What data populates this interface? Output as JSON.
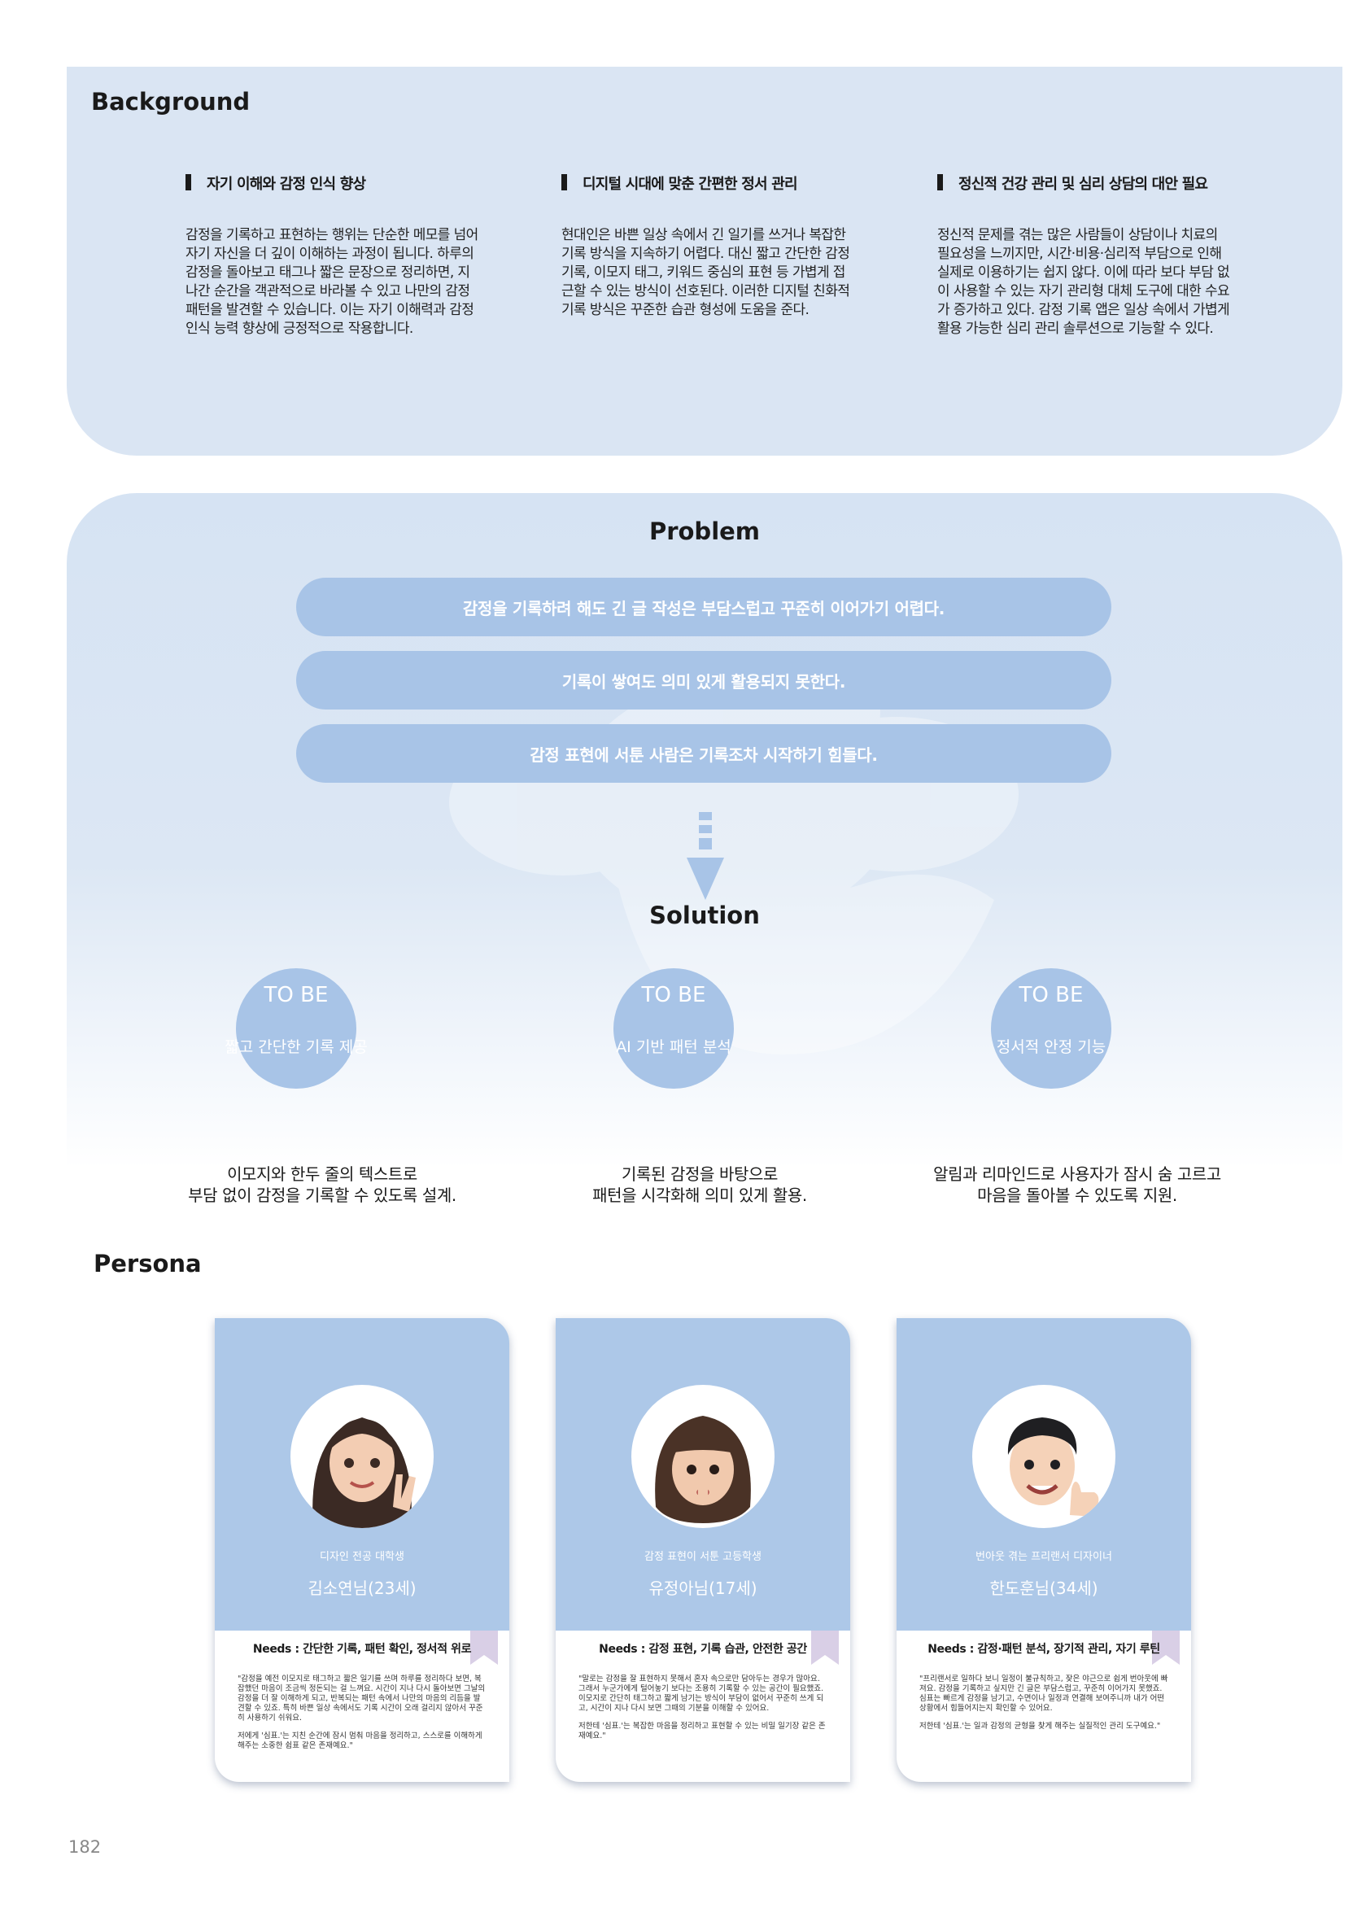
{
  "background": {
    "title": "Background",
    "columns": [
      {
        "heading": "자기 이해와 감정 인식 향상",
        "body": "감정을 기록하고 표현하는 행위는 단순한 메모를 넘어 자기 자신을 더 깊이 이해하는 과정이 됩니다. 하루의 감정을 돌아보고 태그나 짧은 문장으로 정리하면, 지나간 순간을 객관적으로 바라볼 수 있고 나만의 감정 패턴을 발견할 수 있습니다. 이는 자기 이해력과 감정 인식 능력 향상에 긍정적으로 작용합니다."
      },
      {
        "heading": "디지털 시대에 맞춘 간편한 정서 관리",
        "body": "현대인은 바쁜 일상 속에서 긴 일기를 쓰거나 복잡한 기록 방식을 지속하기 어렵다. 대신 짧고 간단한 감정 기록, 이모지 태그, 키워드 중심의 표현 등 가볍게 접근할 수 있는 방식이 선호된다. 이러한 디지털 친화적 기록 방식은 꾸준한 습관 형성에 도움을 준다."
      },
      {
        "heading": "정신적 건강 관리 및 심리 상담의 대안 필요",
        "body": "정신적 문제를 겪는 많은 사람들이 상담이나 치료의 필요성을 느끼지만, 시간·비용·심리적 부담으로 인해 실제로 이용하기는 쉽지 않다. 이에 따라 보다 부담 없이 사용할 수 있는 자기 관리형 대체 도구에 대한 수요가 증가하고 있다. 감정 기록 앱은 일상 속에서 가볍게 활용 가능한 심리 관리 솔루션으로 기능할 수 있다."
      }
    ]
  },
  "problem": {
    "title": "Problem",
    "items": [
      "감정을 기록하려 해도 긴 글 작성은 부담스럽고 꾸준히 이어가기 어렵다.",
      "기록이 쌓여도 의미 있게 활용되지 못한다.",
      "감정 표현에 서툰 사람은 기록조차 시작하기 힘들다."
    ]
  },
  "solution": {
    "title": "Solution",
    "items": [
      {
        "label": "TO BE",
        "sub": "짧고 간단한 기록 제공",
        "line1": "이모지와 한두 줄의 텍스트로",
        "line2": "부담 없이 감정을 기록할 수 있도록 설계."
      },
      {
        "label": "TO BE",
        "sub": "AI 기반 패턴 분석",
        "line1": "기록된 감정을 바탕으로",
        "line2": "패턴을 시각화해 의미 있게 활용."
      },
      {
        "label": "TO BE",
        "sub": "정서적 안정 기능",
        "line1": "알림과 리마인드로 사용자가 잠시 숨 고르고",
        "line2": "마음을 돌아볼 수 있도록 지원."
      }
    ]
  },
  "persona": {
    "title": "Persona",
    "cards": [
      {
        "role": "디자인 전공 대학생",
        "name": "김소연님(23세)",
        "needs": "Needs : 간단한 기록, 패턴 확인, 정서적 위로",
        "quote1": "\"감정을 예전 이모지로 태그하고 짧은 일기를 쓰며 하루를 정리하다 보면, 복잡했던 마음이 조금씩 정돈되는 걸 느껴요. 시간이 지나 다시 돌아보면 그날의 감정을 더 잘 이해하게 되고, 반복되는 패턴 속에서 나만의 마음의 리듬을 발견할 수 있죠. 특히 바쁜 일상 속에서도 기록 시간이 오래 걸리지 않아서 꾸준히 사용하기 쉬워요.",
        "quote2": "저에게 '심표.'는 지친 순간에 잠시 멈춰 마음을 정리하고, 스스로를 이해하게 해주는 소중한 쉼표 같은 존재예요.\""
      },
      {
        "role": "감정 표현이 서툰 고등학생",
        "name": "유정아님(17세)",
        "needs": "Needs : 감정 표현, 기록 습관, 안전한 공간",
        "quote1": "\"말로는 감정을 잘 표현하지 못해서 혼자 속으로만 담아두는 경우가 많아요. 그래서 누군가에게 털어놓기 보다는 조용히 기록할 수 있는 공간이 필요했죠. 이모지로 간단히 태그하고 짧게 남기는 방식이 부담이 없어서 꾸준히 쓰게 되고, 시간이 지나 다시 보면 그때의 기분을 이해할 수 있어요.",
        "quote2": "저한테 '심표.'는 복잡한 마음을 정리하고 표현할 수 있는 비밀 일기장 같은 존재예요.\""
      },
      {
        "role": "번아웃 겪는 프리랜서 디자이너",
        "name": "한도훈님(34세)",
        "needs": "Needs : 감정·패턴 분석, 장기적 관리, 자기 루틴",
        "quote1": "\"프리랜서로 일하다 보니 일정이 불규칙하고, 잦은 야근으로 쉽게 번아웃에 빠져요. 감정을 기록하고 싶지만 긴 글은 부담스럽고, 꾸준히 이어가지 못했죠. 심표는 빠르게 감정을 남기고, 수면이나 일정과 연결해 보여주니까 내가 어떤 상황에서 힘들어지는지 확인할 수 있어요.",
        "quote2": "저한테 '심표.'는 일과 감정의 균형을 찾게 해주는 실질적인 관리 도구예요.\""
      }
    ]
  },
  "page_number": "182",
  "colors": {
    "panel": "#dae5f3",
    "pill": "#a8c4e7",
    "card_top": "#adc8e8",
    "ribbon": "#d9cfe6"
  }
}
